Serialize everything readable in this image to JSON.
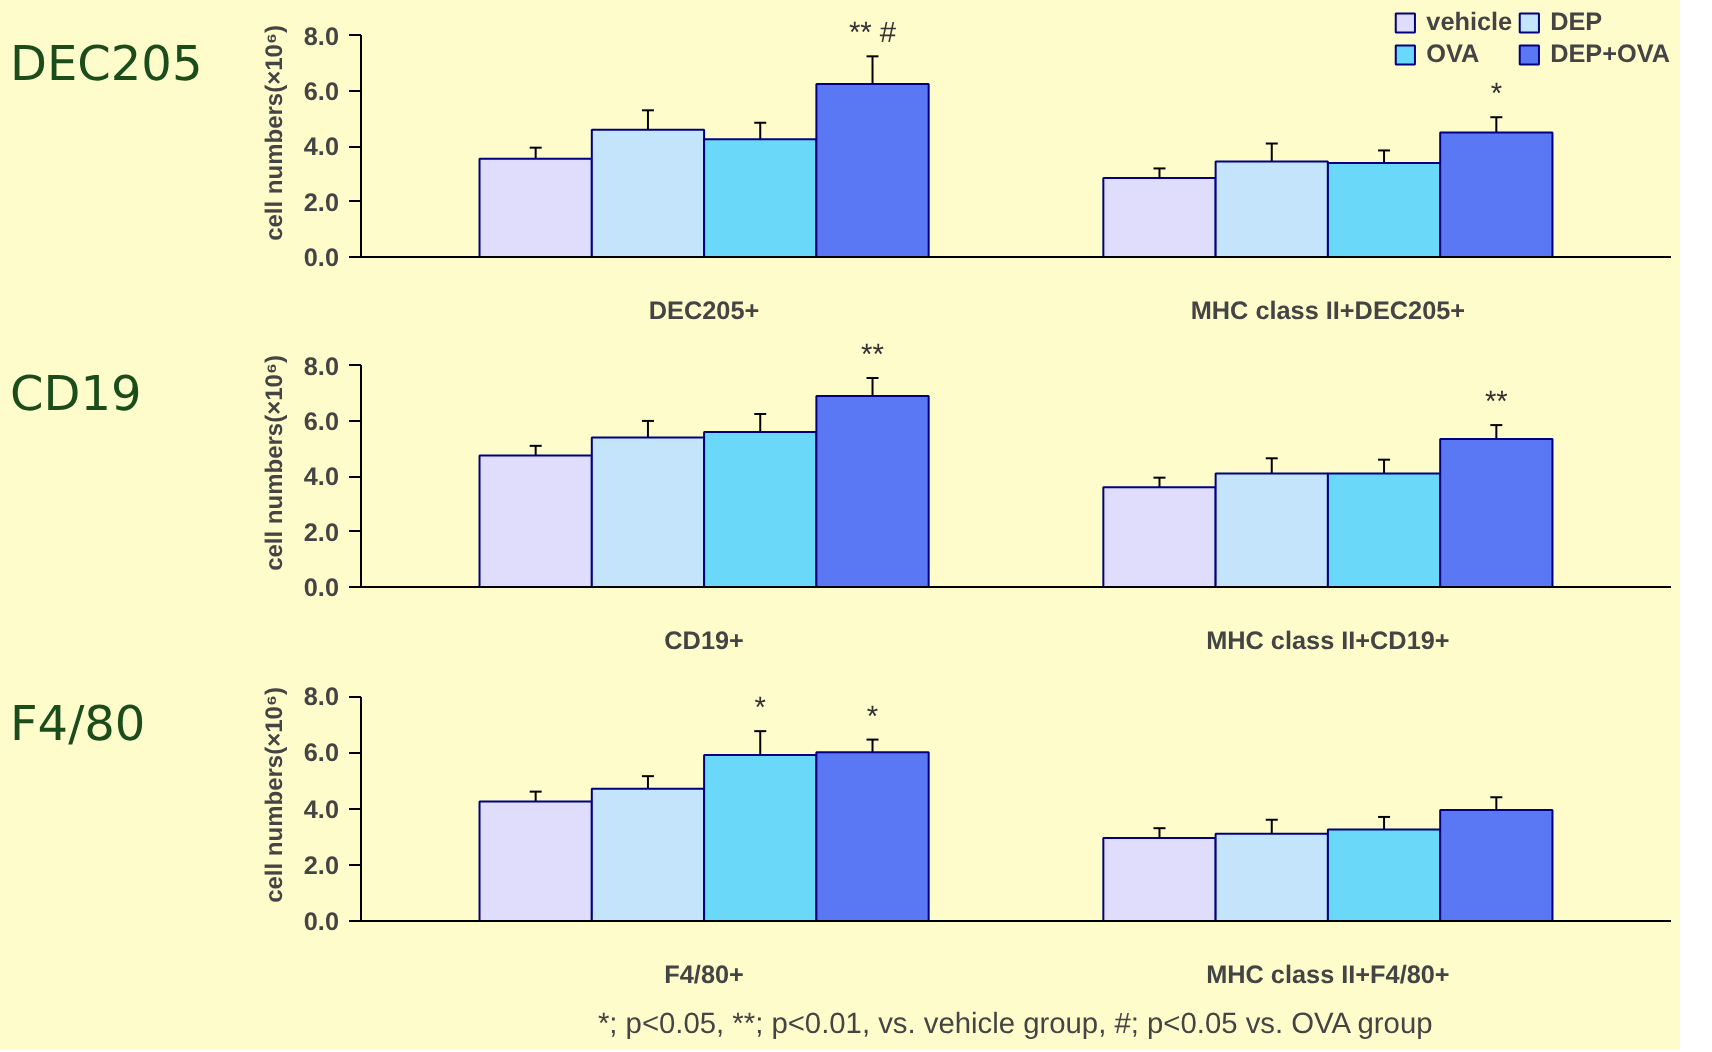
{
  "chart_data": [
    {
      "type": "bar",
      "title": "DEC205",
      "ylabel": "cell numbers(×10⁶)",
      "categories": [
        "DEC205+",
        "MHC class II+DEC205+"
      ],
      "series": [
        {
          "name": "vehicle",
          "color": "#e0dcfc",
          "values": [
            3.55,
            2.85
          ],
          "errors": [
            0.4,
            0.35
          ]
        },
        {
          "name": "DEP",
          "color": "#c4e4fc",
          "values": [
            4.6,
            3.45
          ],
          "errors": [
            0.7,
            0.65
          ]
        },
        {
          "name": "OVA",
          "color": "#6ad8f8",
          "values": [
            4.25,
            3.4
          ],
          "errors": [
            0.6,
            0.45
          ]
        },
        {
          "name": "DEP+OVA",
          "color": "#5a78f4",
          "values": [
            6.25,
            4.5
          ],
          "errors": [
            1.0,
            0.55
          ],
          "value_labels": [
            "** #",
            "*"
          ]
        }
      ],
      "ylim": [
        0,
        8
      ],
      "yticks": [
        {
          "value": 0,
          "label": "0.0"
        },
        {
          "value": 2,
          "label": "2.0"
        },
        {
          "value": 4,
          "label": "4.0"
        },
        {
          "value": 6,
          "label": "6.0"
        },
        {
          "value": 8,
          "label": "8.0"
        }
      ],
      "legend": "top right",
      "grid": false
    },
    {
      "type": "bar",
      "title": "CD19",
      "ylabel": "cell numbers(×10⁶)",
      "categories": [
        "CD19+",
        "MHC class II+CD19+"
      ],
      "series": [
        {
          "color": "#e0dcfc",
          "values": [
            4.75,
            3.6
          ],
          "errors": [
            0.35,
            0.35
          ]
        },
        {
          "color": "#c4e4fc",
          "values": [
            5.4,
            4.1
          ],
          "errors": [
            0.6,
            0.55
          ]
        },
        {
          "color": "#6ad8f8",
          "values": [
            5.6,
            4.1
          ],
          "errors": [
            0.65,
            0.5
          ]
        },
        {
          "color": "#5a78f4",
          "values": [
            6.9,
            5.35
          ],
          "errors": [
            0.65,
            0.5
          ],
          "value_labels": [
            "**",
            "**"
          ]
        }
      ],
      "ylim": [
        0,
        8
      ],
      "yticks": [
        {
          "value": 0,
          "label": "0.0"
        },
        {
          "value": 2,
          "label": "2.0"
        },
        {
          "value": 4,
          "label": "4.0"
        },
        {
          "value": 6,
          "label": "6.0"
        },
        {
          "value": 8,
          "label": "8.0"
        }
      ],
      "legend": false,
      "grid": false
    },
    {
      "type": "bar",
      "title": "F4/80",
      "ylabel": "cell numbers(×10⁶)",
      "categories": [
        "F4/80+",
        "MHC class II+F4/80+"
      ],
      "series": [
        {
          "color": "#e0dcfc",
          "values": [
            4.25,
            2.95
          ],
          "errors": [
            0.35,
            0.35
          ]
        },
        {
          "color": "#c4e4fc",
          "values": [
            4.7,
            3.1
          ],
          "errors": [
            0.45,
            0.5
          ]
        },
        {
          "color": "#6ad8f8",
          "values": [
            5.9,
            3.25
          ],
          "errors": [
            0.85,
            0.45
          ],
          "value_labels": [
            "*",
            null
          ]
        },
        {
          "color": "#5a78f4",
          "values": [
            6.0,
            3.95
          ],
          "errors": [
            0.45,
            0.45
          ],
          "value_labels": [
            "*",
            null
          ]
        }
      ],
      "ylim": [
        0,
        8
      ],
      "yticks": [
        {
          "value": 0,
          "label": "0.0"
        },
        {
          "value": 2,
          "label": "2.0"
        },
        {
          "value": 4,
          "label": "4.0"
        },
        {
          "value": 6,
          "label": "6.0"
        },
        {
          "value": 8,
          "label": "8.0"
        }
      ],
      "annotations": [
        "*; p<0.05, **; p<0.01, vs. vehicle group, #; p<0.05 vs. OVA group"
      ],
      "legend": false,
      "grid": false
    }
  ]
}
